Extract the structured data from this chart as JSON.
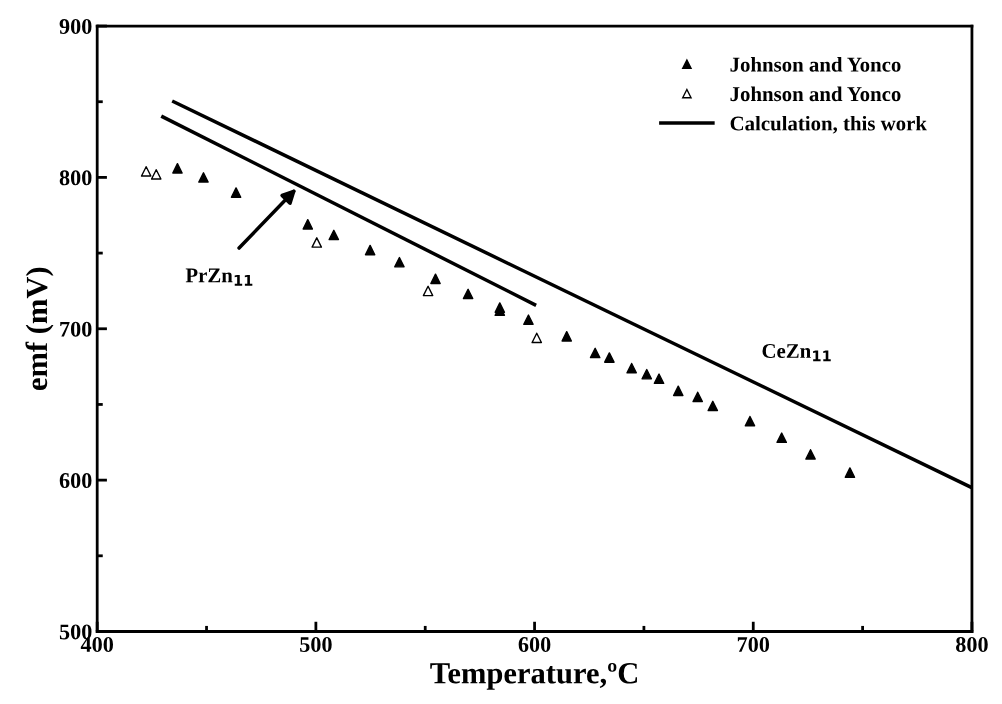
{
  "chart_data": {
    "type": "scatter",
    "xlabel": "Temperature,ºC",
    "ylabel": "emf (mV)",
    "xlim": [
      400,
      800
    ],
    "ylim": [
      500,
      900
    ],
    "xticks": [
      400,
      500,
      600,
      700,
      800
    ],
    "yticks": [
      500,
      600,
      700,
      800,
      900
    ],
    "grid": false,
    "legend": "top right",
    "series": [
      {
        "name": "Johnson and Yonco",
        "marker": "triangle",
        "color": "#000000",
        "x": [
          436.7,
          448.6,
          463.5,
          496.3,
          508.2,
          524.8,
          538.2,
          554.7,
          569.6,
          584.1,
          584.1,
          597.2,
          614.7,
          627.7,
          634.2,
          644.4,
          651.3,
          656.9,
          665.7,
          674.6,
          681.5,
          698.5,
          713.0,
          726.2,
          744.2
        ],
        "values": [
          806,
          800,
          790,
          769,
          762,
          752,
          744,
          733,
          723,
          714,
          712,
          706,
          695,
          684,
          681,
          674,
          670,
          667,
          659,
          655,
          649,
          639,
          628,
          617,
          605
        ]
      },
      {
        "name": "Johnson and Yonco",
        "marker": "triangle",
        "color": "#ffffff",
        "x": [
          422.4,
          427.0,
          500.4,
          551.3,
          601.0
        ],
        "values": [
          804,
          802,
          757,
          725,
          694
        ]
      },
      {
        "name": "Calculation, this work",
        "type": "line",
        "marker": "none",
        "line_style": "solid",
        "color": "#000000",
        "x": [
          430,
          600
        ],
        "values": [
          840,
          716
        ]
      },
      {
        "type": "line",
        "marker": "none",
        "line_style": "solid",
        "color": "#000000",
        "x": [
          435,
          800
        ],
        "values": [
          850,
          595
        ]
      }
    ],
    "annotations": [
      "PrZn$_{11}$",
      "CeZn$_{11}$"
    ]
  }
}
